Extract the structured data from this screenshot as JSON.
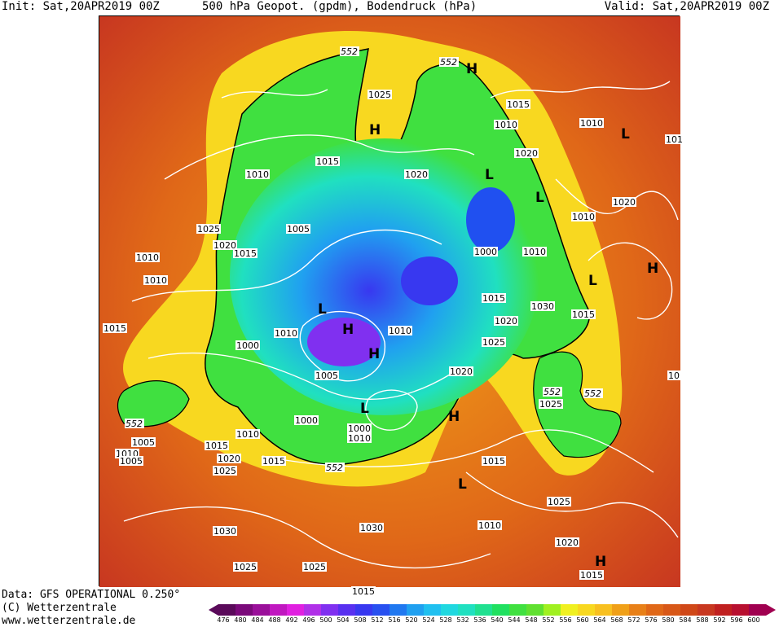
{
  "header": {
    "init": "Init: Sat,20APR2019 00Z",
    "title": "500 hPa Geopot. (gpdm), Bodendruck (hPa)",
    "valid": "Valid: Sat,20APR2019 00Z"
  },
  "footer": {
    "data_line": "Data: GFS OPERATIONAL 0.250°",
    "copyright": "(C) Wetterzentrale",
    "url": "www.wetterzentrale.de"
  },
  "colorbar": {
    "values": [
      476,
      480,
      484,
      488,
      492,
      496,
      500,
      504,
      508,
      512,
      516,
      520,
      524,
      528,
      532,
      536,
      540,
      544,
      548,
      552,
      556,
      560,
      564,
      568,
      572,
      576,
      580,
      584,
      588,
      592,
      596,
      600
    ],
    "colors": [
      "#5a0a5a",
      "#7a0a7a",
      "#9a109a",
      "#c018c0",
      "#e020e0",
      "#b030e8",
      "#8030f0",
      "#5830f0",
      "#3838f0",
      "#2850f0",
      "#2078f0",
      "#20a0f0",
      "#20c0f0",
      "#20d8e0",
      "#20e0c0",
      "#20e090",
      "#20e060",
      "#40e040",
      "#60e030",
      "#a0f020",
      "#f0f020",
      "#f8d820",
      "#f8c020",
      "#f0a018",
      "#e88018",
      "#e06818",
      "#d85818",
      "#d04818",
      "#c83820",
      "#c02020",
      "#b81030",
      "#a00050"
    ]
  },
  "map": {
    "contour_label_552": "552",
    "pressure_labels": [
      {
        "t": "1025"
      },
      {
        "t": "1015"
      },
      {
        "t": "1010"
      },
      {
        "t": "1010"
      },
      {
        "t": "1025"
      },
      {
        "t": "1020"
      },
      {
        "t": "1005"
      },
      {
        "t": "1015"
      },
      {
        "t": "1010"
      },
      {
        "t": "1010"
      },
      {
        "t": "1015"
      },
      {
        "t": "1010"
      },
      {
        "t": "1000"
      },
      {
        "t": "1005"
      },
      {
        "t": "1000"
      },
      {
        "t": "1000"
      },
      {
        "t": "1010"
      },
      {
        "t": "1010"
      },
      {
        "t": "1005"
      },
      {
        "t": "1010"
      },
      {
        "t": "1015"
      },
      {
        "t": "1020"
      },
      {
        "t": "1025"
      },
      {
        "t": "1030"
      },
      {
        "t": "1025"
      },
      {
        "t": "1020"
      },
      {
        "t": "1025"
      },
      {
        "t": "1020"
      },
      {
        "t": "1015"
      },
      {
        "t": "1010"
      },
      {
        "t": "1015"
      },
      {
        "t": "1020"
      },
      {
        "t": "1010"
      },
      {
        "t": "1000"
      },
      {
        "t": "1010"
      },
      {
        "t": "1015"
      },
      {
        "t": "1020"
      },
      {
        "t": "1025"
      },
      {
        "t": "1030"
      },
      {
        "t": "1025"
      },
      {
        "t": "1030"
      },
      {
        "t": "1010"
      },
      {
        "t": "1020"
      },
      {
        "t": "1015"
      },
      {
        "t": "1015"
      },
      {
        "t": "1025"
      },
      {
        "t": "1015"
      },
      {
        "t": "1005"
      },
      {
        "t": "1020"
      },
      {
        "t": "1010"
      },
      {
        "t": "1015"
      },
      {
        "t": "101"
      },
      {
        "t": "10"
      }
    ],
    "highs_lows": [
      {
        "t": "H"
      },
      {
        "t": "H"
      },
      {
        "t": "L"
      },
      {
        "t": "L"
      },
      {
        "t": "H"
      },
      {
        "t": "H"
      },
      {
        "t": "L"
      },
      {
        "t": "L"
      },
      {
        "t": "H"
      },
      {
        "t": "L"
      },
      {
        "t": "L"
      },
      {
        "t": "L"
      },
      {
        "t": "H"
      },
      {
        "t": "H"
      }
    ]
  }
}
